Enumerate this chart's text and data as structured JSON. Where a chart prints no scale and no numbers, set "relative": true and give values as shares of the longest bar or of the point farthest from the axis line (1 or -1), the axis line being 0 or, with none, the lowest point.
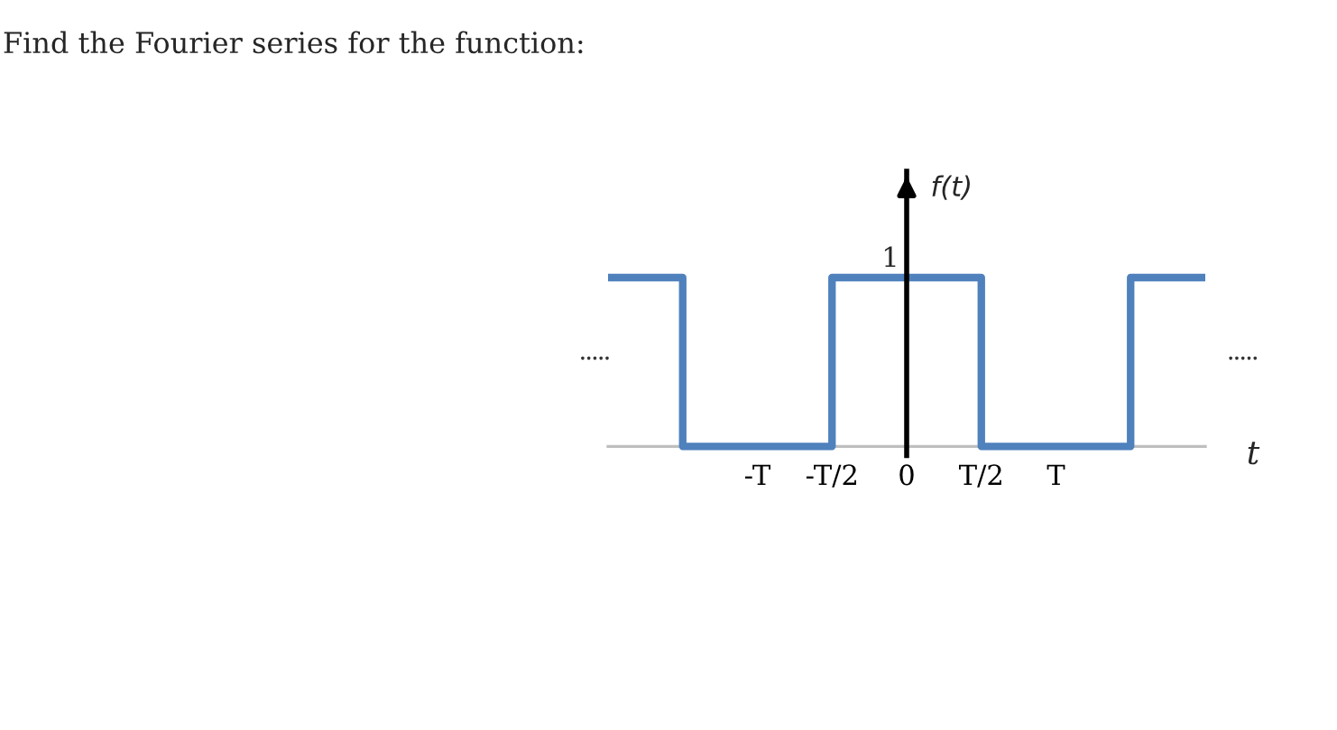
{
  "chart_data": {
    "type": "step",
    "relative": true,
    "title": "Find the Fourier series for the function:",
    "xlabel": "t",
    "ylabel": "f(t)",
    "categories": [
      null,
      null,
      "-T",
      "-T/2",
      "0",
      "T/2",
      "T",
      null,
      null
    ],
    "values": [
      1,
      0,
      0,
      1,
      1,
      0,
      0,
      1,
      1
    ],
    "color": "#4f81bd",
    "annotations": [
      "1",
      ".....",
      "....."
    ]
  }
}
